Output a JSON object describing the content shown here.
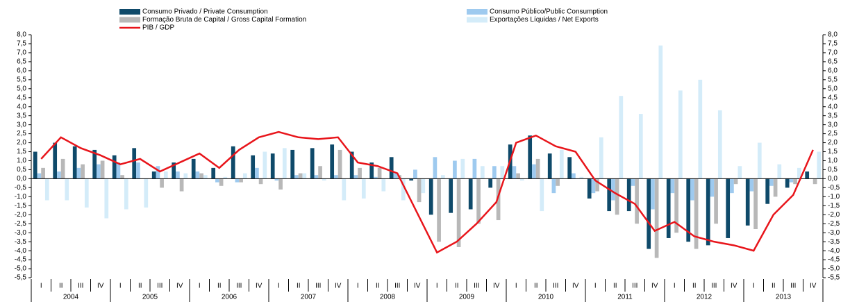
{
  "chart_data": {
    "type": "bar",
    "categories": [
      "I",
      "II",
      "III",
      "IV",
      "I",
      "II",
      "III",
      "IV",
      "I",
      "II",
      "III",
      "IV",
      "I",
      "II",
      "III",
      "IV",
      "I",
      "II",
      "III",
      "IV",
      "I",
      "II",
      "III",
      "IV",
      "I",
      "II",
      "III",
      "IV",
      "I",
      "II",
      "III",
      "IV",
      "I",
      "II",
      "III",
      "IV",
      "I",
      "II",
      "III",
      "IV"
    ],
    "groups": [
      "2004",
      "2005",
      "2006",
      "2007",
      "2008",
      "2009",
      "2010",
      "2011",
      "2012",
      "2013"
    ],
    "series": [
      {
        "name": "Consumo Privado / Private Consumption",
        "color": "#0f4a6a",
        "values": [
          1.5,
          2.0,
          1.8,
          1.6,
          1.3,
          1.7,
          0.4,
          0.9,
          1.1,
          0.6,
          1.8,
          1.3,
          1.4,
          1.6,
          1.7,
          1.9,
          1.5,
          0.9,
          1.2,
          -0.1,
          -2.0,
          -1.9,
          -1.7,
          -0.5,
          1.9,
          2.4,
          1.4,
          1.2,
          -1.1,
          -1.8,
          -1.8,
          -3.9,
          -3.3,
          -3.5,
          -3.7,
          -3.3,
          -2.6,
          -1.4,
          -0.5,
          0.4
        ]
      },
      {
        "name": "Consumo Público/Public Consumption",
        "color": "#9ecaef",
        "values": [
          0.3,
          0.4,
          0.6,
          0.8,
          0.9,
          0.9,
          0.7,
          0.4,
          0.4,
          -0.2,
          -0.2,
          0.6,
          -0.1,
          0.2,
          0.2,
          0.2,
          0.2,
          0.1,
          0.3,
          0.5,
          1.2,
          1.0,
          1.1,
          0.7,
          0.7,
          0.8,
          -0.8,
          0.3,
          -0.8,
          -1.2,
          -0.4,
          -1.7,
          -0.8,
          -1.2,
          -1.0,
          -0.8,
          -0.7,
          -0.4,
          -0.2,
          0.0
        ]
      },
      {
        "name": "Formação Bruta de Capital / Gross Capital Formation",
        "color": "#b8b8b8",
        "values": [
          0.6,
          1.1,
          0.8,
          1.0,
          0.2,
          0.0,
          -0.5,
          -0.7,
          0.3,
          -0.4,
          -0.2,
          -0.3,
          -0.6,
          0.3,
          0.7,
          1.6,
          0.6,
          0.6,
          0.2,
          -1.3,
          -3.5,
          -3.8,
          -2.5,
          -2.3,
          0.3,
          1.1,
          -0.4,
          0.0,
          -0.7,
          -2.0,
          -2.5,
          -4.4,
          -3.0,
          -3.9,
          -2.5,
          -0.3,
          -2.8,
          -1.0,
          -0.3,
          -0.3
        ]
      },
      {
        "name": "Exportações Líquidas / Net Exports",
        "color": "#d4ecf9",
        "values": [
          -1.2,
          -1.2,
          -1.6,
          -2.2,
          -1.7,
          -1.6,
          0.4,
          0.3,
          0.2,
          0.1,
          0.3,
          1.5,
          1.7,
          0.3,
          -0.1,
          -1.2,
          -1.1,
          -0.7,
          -1.2,
          -0.8,
          0.2,
          1.1,
          0.7,
          0.7,
          -0.1,
          -1.8,
          1.6,
          0.1,
          2.3,
          4.6,
          3.6,
          7.4,
          4.9,
          5.5,
          3.8,
          0.7,
          2.0,
          0.8,
          0.6,
          1.5
        ]
      },
      {
        "name": "PIB / GDP",
        "type": "line",
        "color": "#e8151b",
        "values": [
          1.1,
          2.3,
          1.7,
          1.3,
          0.8,
          1.1,
          0.4,
          0.9,
          1.4,
          0.6,
          1.6,
          2.3,
          2.6,
          2.3,
          2.2,
          2.3,
          0.9,
          0.7,
          0.3,
          -1.9,
          -4.1,
          -3.5,
          -2.5,
          -1.3,
          2.0,
          2.4,
          1.8,
          1.5,
          -0.1,
          -0.8,
          -1.4,
          -2.9,
          -2.4,
          -3.2,
          -3.5,
          -3.7,
          -4.0,
          -2.0,
          -0.9,
          1.6
        ]
      }
    ],
    "ylim": [
      -5.5,
      8.0
    ],
    "yticks": [
      {
        "value": -5.5,
        "label": "-5,5"
      },
      {
        "value": -5,
        "label": "-5,0"
      },
      {
        "value": -4.5,
        "label": "-4,5"
      },
      {
        "value": -4,
        "label": "-4,0"
      },
      {
        "value": -3.5,
        "label": "-3,5"
      },
      {
        "value": -3,
        "label": "-3,0"
      },
      {
        "value": -2.5,
        "label": "-2,5"
      },
      {
        "value": -2,
        "label": "-2,0"
      },
      {
        "value": -1.5,
        "label": "-1,5"
      },
      {
        "value": -1,
        "label": "-1,0"
      },
      {
        "value": -0.5,
        "label": "-0,5"
      },
      {
        "value": 0,
        "label": "0,0"
      },
      {
        "value": 0.5,
        "label": "0,5"
      },
      {
        "value": 1,
        "label": "1,0"
      },
      {
        "value": 1.5,
        "label": "1,5"
      },
      {
        "value": 2,
        "label": "2,0"
      },
      {
        "value": 2.5,
        "label": "2,5"
      },
      {
        "value": 3,
        "label": "3,0"
      },
      {
        "value": 3.5,
        "label": "3,5"
      },
      {
        "value": 4,
        "label": "4,0"
      },
      {
        "value": 4.5,
        "label": "4,5"
      },
      {
        "value": 5,
        "label": "5,0"
      },
      {
        "value": 5.5,
        "label": "5,5"
      },
      {
        "value": 6,
        "label": "6,0"
      },
      {
        "value": 6.5,
        "label": "6,5"
      },
      {
        "value": 7,
        "label": "7,0"
      },
      {
        "value": 7.5,
        "label": "7,5"
      },
      {
        "value": 8,
        "label": "8,0"
      }
    ],
    "y2lim": [
      -5.5,
      8.0
    ],
    "y2ticks": [
      {
        "value": -5.5,
        "label": "-5,5"
      },
      {
        "value": -5,
        "label": "-5,0"
      },
      {
        "value": -4.5,
        "label": "-4,5"
      },
      {
        "value": -4,
        "label": "-4,0"
      },
      {
        "value": -3.5,
        "label": "-3,5"
      },
      {
        "value": -3,
        "label": "-3,0"
      },
      {
        "value": -2.5,
        "label": "-2,5"
      },
      {
        "value": -2,
        "label": "-2,0"
      },
      {
        "value": -1.5,
        "label": "-1,5"
      },
      {
        "value": -1,
        "label": "-1,0"
      },
      {
        "value": -0.5,
        "label": "-0,5"
      },
      {
        "value": 0,
        "label": "0,0"
      },
      {
        "value": 0.5,
        "label": "0,5"
      },
      {
        "value": 1,
        "label": "1,0"
      },
      {
        "value": 1.5,
        "label": "1,5"
      },
      {
        "value": 2,
        "label": "2,0"
      },
      {
        "value": 2.5,
        "label": "2,5"
      },
      {
        "value": 3,
        "label": "3,0"
      },
      {
        "value": 3.5,
        "label": "3,5"
      },
      {
        "value": 4,
        "label": "4,0"
      },
      {
        "value": 4.5,
        "label": "4,5"
      },
      {
        "value": 5,
        "label": "5,0"
      },
      {
        "value": 5.5,
        "label": "5,5"
      },
      {
        "value": 6,
        "label": "6,0"
      },
      {
        "value": 6.5,
        "label": "6,5"
      },
      {
        "value": 7,
        "label": "7,0"
      },
      {
        "value": 7.5,
        "label": "7,5"
      },
      {
        "value": 8,
        "label": "8,0"
      }
    ],
    "grid": false
  }
}
